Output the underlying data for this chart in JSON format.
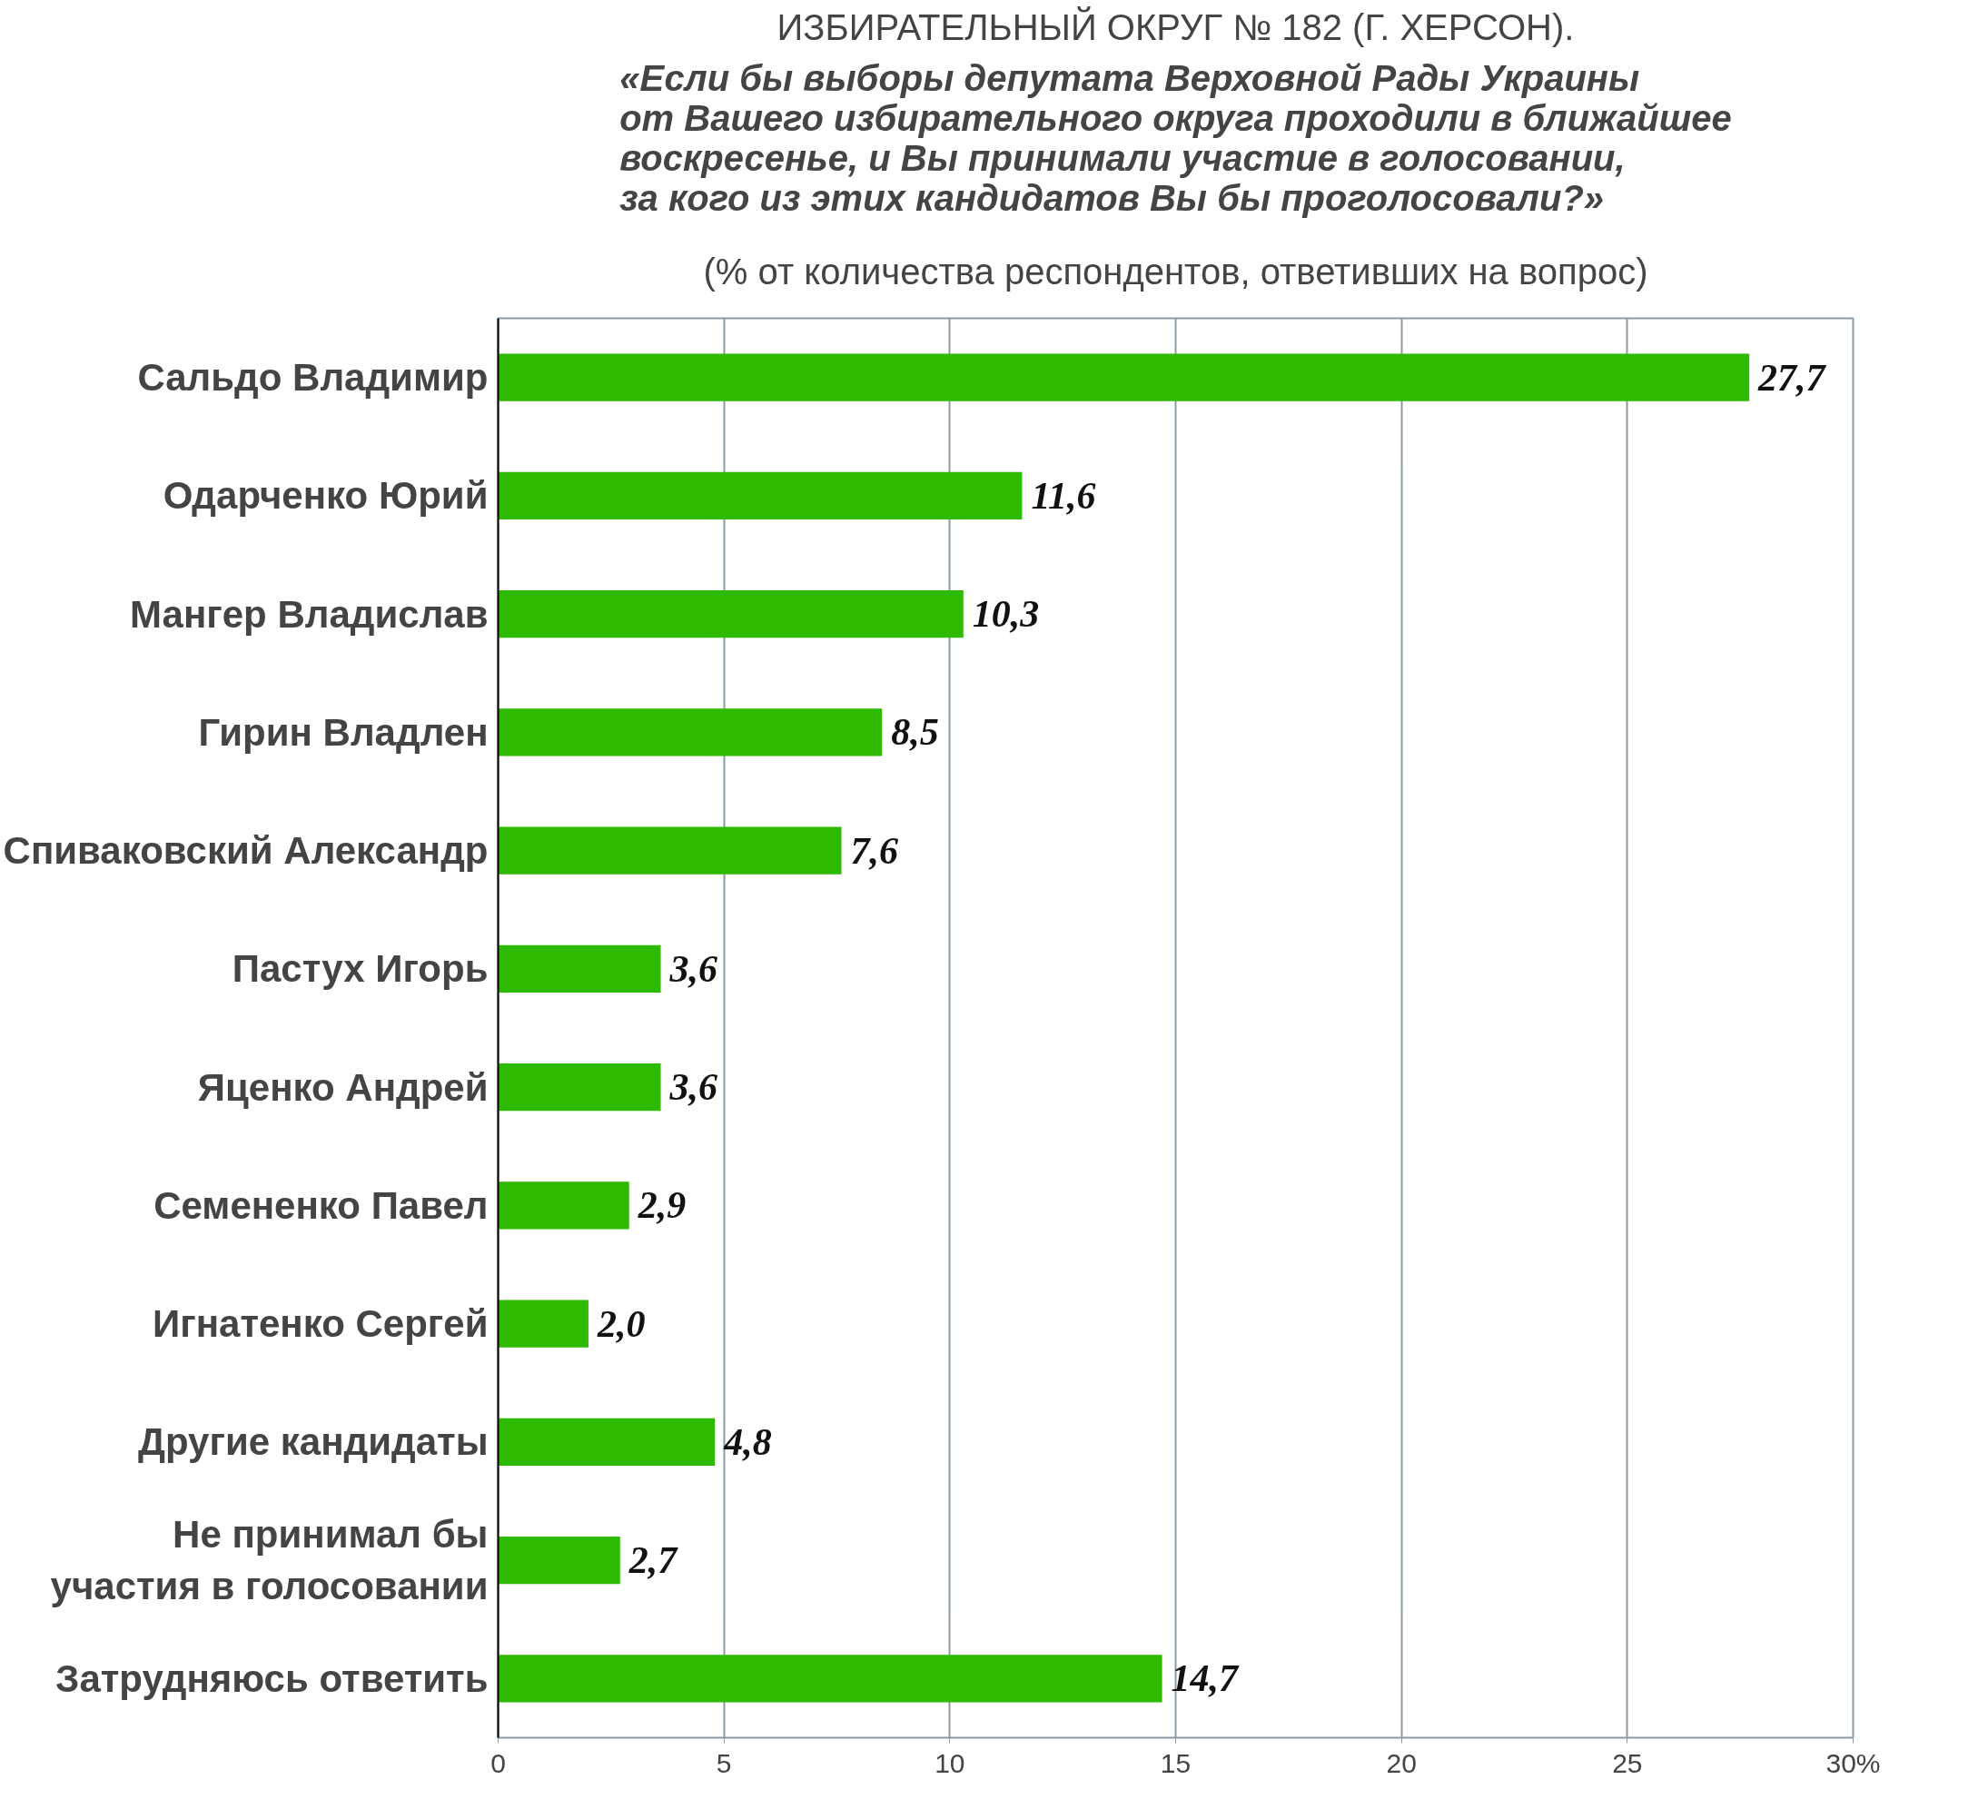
{
  "chart_data": {
    "type": "bar",
    "orientation": "horizontal",
    "title": "ИЗБИРАТЕЛЬНЫЙ ОКРУГ № 182 (Г. ХЕРСОН).",
    "subtitle": "«Если бы выборы депутата Верховной Рады Украины\nот Вашего избирательного округа проходили в ближайшее\nвоскресенье, и Вы принимали участие в голосовании,\nза кого из этих кандидатов Вы бы проголосовали?»",
    "annotations": [
      "(% от количества респондентов, ответивших на вопрос)"
    ],
    "categories": [
      "Сальдо Владимир",
      "Одарченко Юрий",
      "Мангер Владислав",
      "Гирин Владлен",
      "Спиваковский Александр",
      "Пастух Игорь",
      "Яценко Андрей",
      "Семененко Павел",
      "Игнатенко Сергей",
      "Другие кандидаты",
      "Не принимал бы\nучастия в голосовании",
      "Затрудняюсь ответить"
    ],
    "values": [
      27.7,
      11.6,
      10.3,
      8.5,
      7.6,
      3.6,
      3.6,
      2.9,
      2.0,
      4.8,
      2.7,
      14.7
    ],
    "value_labels": [
      "27,7",
      "11,6",
      "10,3",
      "8,5",
      "7,6",
      "3,6",
      "3,6",
      "2,9",
      "2,0",
      "4,8",
      "2,7",
      "14,7"
    ],
    "color": "#2dba00",
    "xlim": [
      0,
      30
    ],
    "xticks": [
      0,
      5,
      10,
      15,
      20,
      25,
      {
        "value": 30,
        "label": "30%"
      }
    ],
    "grid": "x"
  }
}
